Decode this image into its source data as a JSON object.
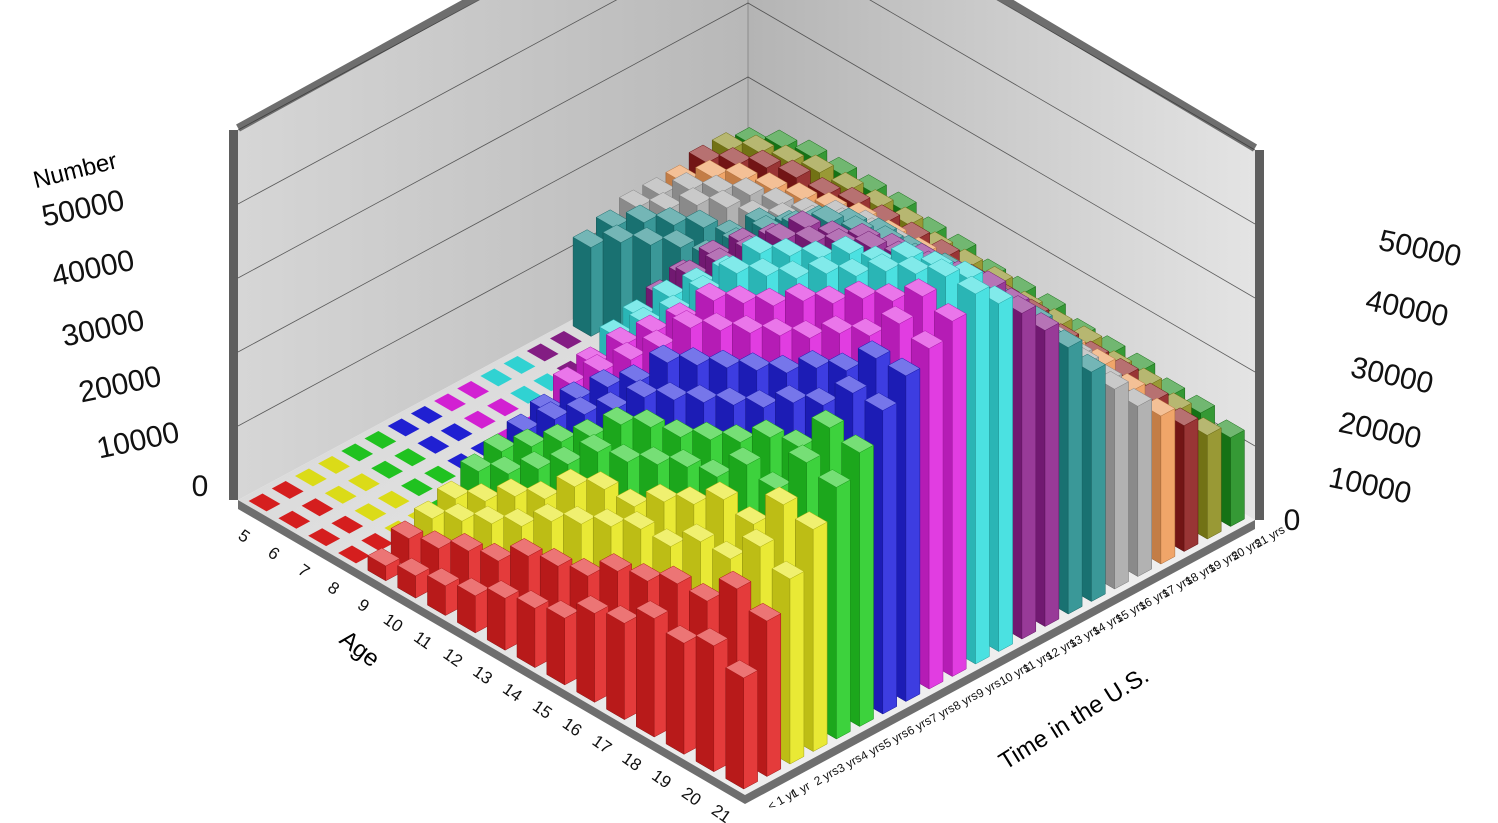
{
  "chart_data": {
    "type": "bar",
    "ylabel": "Number",
    "xlabel": "Age",
    "zlabel": "Time in the U.S.",
    "ylim": [
      0,
      50000
    ],
    "yticks": [
      "0",
      "10000",
      "20000",
      "30000",
      "40000",
      "50000"
    ],
    "ages": [
      "21",
      "20",
      "19",
      "18",
      "17",
      "16",
      "15",
      "14",
      "13",
      "12",
      "11",
      "10",
      "9",
      "8",
      "7",
      "6",
      "5"
    ],
    "durations": [
      "< 1 yr",
      "1 yr",
      "2 yrs",
      "3 yrs",
      "4 yrs",
      "5 yrs",
      "6 yrs",
      "7 yrs",
      "8 yrs",
      "9 yrs",
      "10 yrs",
      "11 yrs",
      "12 yrs",
      "13 yrs",
      "14 yrs",
      "15 yrs",
      "16 yrs",
      "17 yrs",
      "18 yrs",
      "19 yrs",
      "20 yrs",
      "21 yrs"
    ],
    "row_colors": [
      "#e02020",
      "#e02020",
      "#e6e619",
      "#e6e619",
      "#22cc22",
      "#22cc22",
      "#2222dd",
      "#2222dd",
      "#dd22dd",
      "#dd22dd",
      "#33dddd",
      "#33dddd",
      "#8a1f8a",
      "#8a1f8a",
      "#1f8a8a",
      "#1f8a8a",
      "#a8a8a8",
      "#a8a8a8",
      "#ee9955",
      "#8b1a1a",
      "#8b8b1a",
      "#1a8b1a",
      "#22229a",
      "#999999",
      "#222222",
      "#ee3333"
    ],
    "grid": true,
    "values": [
      [
        15000,
        17000,
        15000,
        16000,
        13000,
        12000,
        9000,
        8000,
        7000,
        5000,
        4000,
        3000,
        2000,
        0,
        0,
        0,
        0
      ],
      [
        21000,
        23000,
        19000,
        19000,
        17000,
        16000,
        13000,
        12000,
        11000,
        8000,
        7000,
        5000,
        4000,
        0,
        0,
        0,
        0
      ],
      [
        25000,
        27000,
        23000,
        23000,
        20000,
        20000,
        18000,
        16000,
        14000,
        11000,
        9000,
        7000,
        5000,
        0,
        0,
        0,
        0
      ],
      [
        30000,
        31000,
        26000,
        27000,
        24000,
        22000,
        19000,
        19000,
        17000,
        13000,
        11000,
        8000,
        6000,
        0,
        0,
        0,
        0
      ],
      [
        34000,
        35000,
        29000,
        30000,
        26000,
        25000,
        23000,
        21000,
        20000,
        16000,
        13000,
        10000,
        8000,
        0,
        0,
        0,
        0
      ],
      [
        37000,
        38000,
        33000,
        32000,
        29000,
        27000,
        25000,
        24000,
        22000,
        18000,
        15000,
        12000,
        9000,
        0,
        0,
        0,
        0
      ],
      [
        41000,
        41000,
        37000,
        35000,
        32000,
        30000,
        28000,
        26000,
        24000,
        20000,
        17000,
        14000,
        10000,
        0,
        0,
        0,
        0
      ],
      [
        44000,
        44000,
        40000,
        38000,
        35000,
        33000,
        31000,
        29000,
        27000,
        22000,
        19000,
        15000,
        11000,
        0,
        0,
        0,
        0
      ],
      [
        46000,
        47000,
        43000,
        41000,
        38000,
        36000,
        34000,
        32000,
        30000,
        25000,
        21000,
        17000,
        13000,
        0,
        0,
        0,
        0
      ],
      [
        48000,
        49000,
        46000,
        44000,
        41000,
        39000,
        36000,
        34000,
        32000,
        27000,
        23000,
        19000,
        14000,
        0,
        0,
        0,
        0
      ],
      [
        50000,
        50000,
        48000,
        46000,
        43000,
        41000,
        38000,
        36000,
        34000,
        29000,
        24000,
        20000,
        16000,
        0,
        0,
        0,
        0
      ],
      [
        47000,
        48000,
        47000,
        46000,
        43000,
        42000,
        39000,
        37000,
        35000,
        30000,
        26000,
        22000,
        17000,
        0,
        0,
        0,
        0
      ],
      [
        44000,
        45000,
        44000,
        43000,
        42000,
        41000,
        39000,
        37000,
        35000,
        31000,
        27000,
        23000,
        18000,
        0,
        0,
        0,
        0
      ],
      [
        40000,
        41000,
        41000,
        40000,
        40000,
        39000,
        38000,
        36000,
        35000,
        31000,
        28000,
        24000,
        19000,
        0,
        0,
        0,
        0
      ],
      [
        36000,
        37000,
        37000,
        37000,
        37000,
        36000,
        36000,
        35000,
        34000,
        31000,
        28000,
        24000,
        20000,
        19000,
        17000,
        15000,
        12000
      ],
      [
        31000,
        32000,
        33000,
        33000,
        33000,
        33000,
        33000,
        33000,
        32000,
        30000,
        27000,
        25000,
        21000,
        20000,
        18000,
        16000,
        13000
      ],
      [
        27000,
        28000,
        29000,
        29000,
        29000,
        29000,
        29000,
        29000,
        29000,
        28000,
        26000,
        24000,
        22000,
        21000,
        19000,
        16000,
        14000
      ],
      [
        23000,
        24000,
        25000,
        25000,
        25000,
        26000,
        26000,
        26000,
        26000,
        26000,
        25000,
        23000,
        22000,
        21000,
        19000,
        17000,
        14000
      ],
      [
        20000,
        21000,
        22000,
        22000,
        22000,
        22000,
        23000,
        23000,
        23000,
        23000,
        23000,
        22000,
        21000,
        20000,
        19000,
        17000,
        14000
      ],
      [
        17000,
        18000,
        19000,
        19000,
        19000,
        20000,
        20000,
        20000,
        21000,
        21000,
        21000,
        21000,
        20000,
        20000,
        19000,
        17000,
        15000
      ],
      [
        14000,
        15000,
        16000,
        16000,
        17000,
        17000,
        17000,
        18000,
        18000,
        18000,
        19000,
        19000,
        19000,
        19000,
        18000,
        17000,
        15000
      ],
      [
        12000,
        13000,
        13000,
        14000,
        14000,
        14000,
        15000,
        15000,
        15000,
        16000,
        16000,
        17000,
        17000,
        17000,
        17000,
        16000,
        14000
      ]
    ]
  }
}
